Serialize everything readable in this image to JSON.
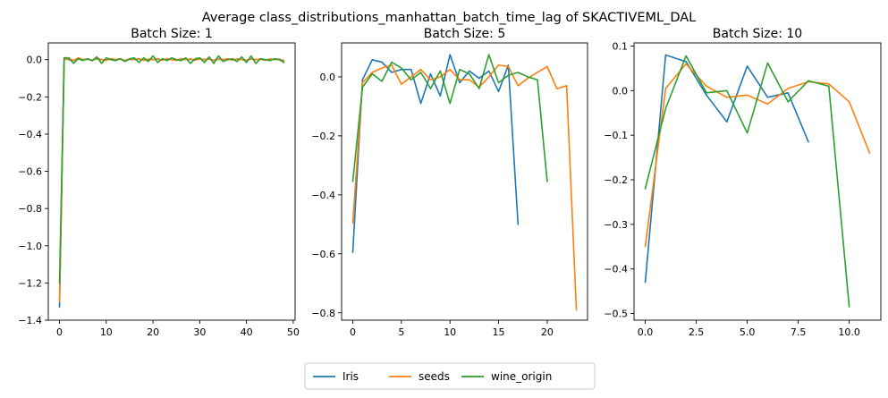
{
  "chart_data": {
    "type": "line",
    "title": "Average class_distributions_manhattan_batch_time_lag of SKACTIVEML_DAL",
    "legend_position": "bottom-center",
    "grid": false,
    "colors": {
      "Iris": "#1f77b4",
      "seeds": "#ff7f0e",
      "wine_origin": "#2ca02c"
    },
    "legend": [
      "Iris",
      "seeds",
      "wine_origin"
    ],
    "subplots": [
      {
        "title": "Batch Size: 1",
        "xlim": [
          -2.4,
          50.4
        ],
        "ylim": [
          -1.4,
          0.09
        ],
        "xticks": [
          0,
          10,
          20,
          30,
          40,
          50
        ],
        "xtick_labels": [
          "0",
          "10",
          "20",
          "30",
          "40",
          "50"
        ],
        "yticks": [
          -1.4,
          -1.2,
          -1.0,
          -0.8,
          -0.6,
          -0.4,
          -0.2,
          0.0
        ],
        "ytick_labels": [
          "−1.4",
          "−1.2",
          "−1.0",
          "−0.8",
          "−0.6",
          "−0.4",
          "−0.2",
          "0.0"
        ],
        "series": [
          {
            "name": "Iris",
            "x": [
              0,
              1,
              2,
              3,
              4,
              5,
              6,
              7,
              8,
              9,
              10,
              11,
              12,
              13,
              14,
              15,
              16,
              17,
              18,
              19,
              20,
              21,
              22,
              23,
              24,
              25,
              26,
              27,
              28,
              29,
              30,
              31,
              32,
              33,
              34,
              35,
              36,
              37,
              38,
              39,
              40,
              41,
              42,
              43,
              44,
              45,
              46,
              47,
              48
            ],
            "y": [
              -1.33,
              0.01,
              0.0,
              -0.005,
              0.005,
              0.0,
              0.002,
              -0.003,
              0.004,
              0.0,
              -0.002,
              0.005,
              0.0,
              0.003,
              -0.004,
              0.002,
              0.0,
              0.004,
              -0.003,
              0.002,
              0.0,
              0.003,
              -0.002,
              0.004,
              0.0,
              -0.003,
              0.005,
              0.0,
              0.002,
              -0.002,
              0.004,
              0.0,
              0.003,
              -0.003,
              0.002,
              0.0,
              0.004,
              -0.002,
              0.003,
              0.0,
              -0.003,
              0.004,
              0.0,
              0.002,
              -0.002,
              0.003,
              0.0,
              0.002,
              -0.005
            ]
          },
          {
            "name": "seeds",
            "x": [
              0,
              1,
              2,
              3,
              4,
              5,
              6,
              7,
              8,
              9,
              10,
              11,
              12,
              13,
              14,
              15,
              16,
              17,
              18,
              19,
              20,
              21,
              22,
              23,
              24,
              25,
              26,
              27,
              28,
              29,
              30,
              31,
              32,
              33,
              34,
              35,
              36,
              37,
              38,
              39,
              40,
              41,
              42,
              43,
              44,
              45,
              46,
              47,
              48
            ],
            "y": [
              -1.3,
              0.0,
              0.005,
              -0.005,
              0.01,
              0.0,
              0.004,
              -0.006,
              0.008,
              0.0,
              -0.004,
              0.006,
              0.0,
              0.005,
              -0.005,
              0.004,
              0.0,
              0.006,
              -0.004,
              0.003,
              0.0,
              0.005,
              -0.003,
              0.006,
              0.0,
              -0.004,
              0.006,
              0.0,
              0.004,
              -0.003,
              0.005,
              0.0,
              0.004,
              -0.004,
              0.003,
              0.0,
              0.005,
              -0.003,
              0.004,
              0.0,
              -0.004,
              0.005,
              0.0,
              0.003,
              -0.003,
              0.004,
              0.0,
              0.003,
              -0.008
            ]
          },
          {
            "name": "wine_origin",
            "x": [
              0,
              1,
              2,
              3,
              4,
              5,
              6,
              7,
              8,
              9,
              10,
              11,
              12,
              13,
              14,
              15,
              16,
              17,
              18,
              19,
              20,
              21,
              22,
              23,
              24,
              25,
              26,
              27,
              28,
              29,
              30,
              31,
              32,
              33,
              34,
              35,
              36,
              37,
              38,
              39,
              40,
              41,
              42,
              43,
              44,
              45,
              46,
              47,
              48
            ],
            "y": [
              -1.2,
              0.01,
              0.01,
              -0.02,
              0.005,
              -0.005,
              0.005,
              -0.005,
              0.015,
              -0.02,
              0.01,
              0.0,
              -0.005,
              0.005,
              -0.01,
              0.005,
              0.01,
              -0.015,
              0.01,
              -0.01,
              0.02,
              -0.015,
              0.005,
              -0.005,
              0.01,
              0.0,
              -0.005,
              0.01,
              -0.02,
              0.005,
              0.01,
              -0.015,
              0.015,
              -0.02,
              0.02,
              -0.01,
              0.0,
              0.005,
              -0.01,
              0.015,
              -0.015,
              0.02,
              -0.02,
              0.005,
              0.0,
              -0.005,
              0.005,
              0.0,
              -0.015
            ]
          }
        ]
      },
      {
        "title": "Batch Size: 5",
        "xlim": [
          -1.15,
          24.15
        ],
        "ylim": [
          -0.825,
          0.115
        ],
        "xticks": [
          0,
          5,
          10,
          15,
          20
        ],
        "xtick_labels": [
          "0",
          "5",
          "10",
          "15",
          "20"
        ],
        "yticks": [
          -0.8,
          -0.6,
          -0.4,
          -0.2,
          0.0
        ],
        "ytick_labels": [
          "−0.8",
          "−0.6",
          "−0.4",
          "−0.2",
          "0.0"
        ],
        "series": [
          {
            "name": "Iris",
            "x": [
              0,
              1,
              2,
              3,
              4,
              5,
              6,
              7,
              8,
              9,
              10,
              11,
              12,
              13,
              14,
              15,
              16,
              17
            ],
            "y": [
              -0.595,
              -0.01,
              0.058,
              0.05,
              0.015,
              0.025,
              0.025,
              -0.09,
              0.01,
              -0.065,
              0.075,
              -0.02,
              0.02,
              -0.005,
              0.02,
              -0.05,
              0.04,
              -0.5
            ]
          },
          {
            "name": "seeds",
            "x": [
              0,
              1,
              2,
              3,
              4,
              5,
              6,
              7,
              8,
              9,
              10,
              11,
              12,
              13,
              14,
              15,
              16,
              17,
              18,
              19,
              20,
              21,
              22,
              23
            ],
            "y": [
              -0.495,
              -0.02,
              0.015,
              0.03,
              0.04,
              -0.025,
              0.0,
              0.025,
              -0.01,
              0.0,
              0.025,
              -0.01,
              -0.01,
              -0.035,
              0.0,
              0.04,
              0.035,
              -0.03,
              -0.005,
              0.015,
              0.035,
              -0.04,
              -0.03,
              -0.79
            ]
          },
          {
            "name": "wine_origin",
            "x": [
              0,
              1,
              2,
              3,
              4,
              5,
              6,
              7,
              8,
              9,
              10,
              11,
              12,
              13,
              14,
              15,
              16,
              17,
              18,
              19,
              20
            ],
            "y": [
              -0.355,
              -0.035,
              0.01,
              -0.015,
              0.05,
              0.03,
              -0.01,
              0.015,
              -0.04,
              0.02,
              -0.09,
              0.025,
              0.01,
              -0.04,
              0.075,
              -0.02,
              0.005,
              0.015,
              0.0,
              -0.01,
              -0.355
            ]
          }
        ]
      },
      {
        "title": "Batch Size: 10",
        "xlim": [
          -0.55,
          11.55
        ],
        "ylim": [
          -0.515,
          0.107
        ],
        "xticks": [
          0,
          2.5,
          5,
          7.5,
          10
        ],
        "xtick_labels": [
          "0.0",
          "2.5",
          "5.0",
          "7.5",
          "10.0"
        ],
        "yticks": [
          -0.5,
          -0.4,
          -0.3,
          -0.2,
          -0.1,
          0.0,
          0.1
        ],
        "ytick_labels": [
          "−0.5",
          "−0.4",
          "−0.3",
          "−0.2",
          "−0.1",
          "0.0",
          "0.1"
        ],
        "series": [
          {
            "name": "Iris",
            "x": [
              0,
              1,
              2,
              3,
              4,
              5,
              6,
              7,
              8
            ],
            "y": [
              -0.43,
              0.08,
              0.065,
              -0.01,
              -0.07,
              0.055,
              -0.015,
              -0.005,
              -0.115
            ]
          },
          {
            "name": "seeds",
            "x": [
              0,
              1,
              2,
              3,
              4,
              5,
              6,
              7,
              8,
              9,
              10,
              11
            ],
            "y": [
              -0.35,
              0.005,
              0.06,
              0.01,
              -0.015,
              -0.01,
              -0.03,
              0.005,
              0.02,
              0.015,
              -0.025,
              -0.14
            ]
          },
          {
            "name": "wine_origin",
            "x": [
              0,
              1,
              2,
              3,
              4,
              5,
              6,
              7,
              8,
              9,
              10
            ],
            "y": [
              -0.22,
              -0.04,
              0.078,
              -0.005,
              0.0,
              -0.095,
              0.062,
              -0.025,
              0.022,
              0.01,
              -0.485
            ]
          }
        ]
      }
    ]
  }
}
